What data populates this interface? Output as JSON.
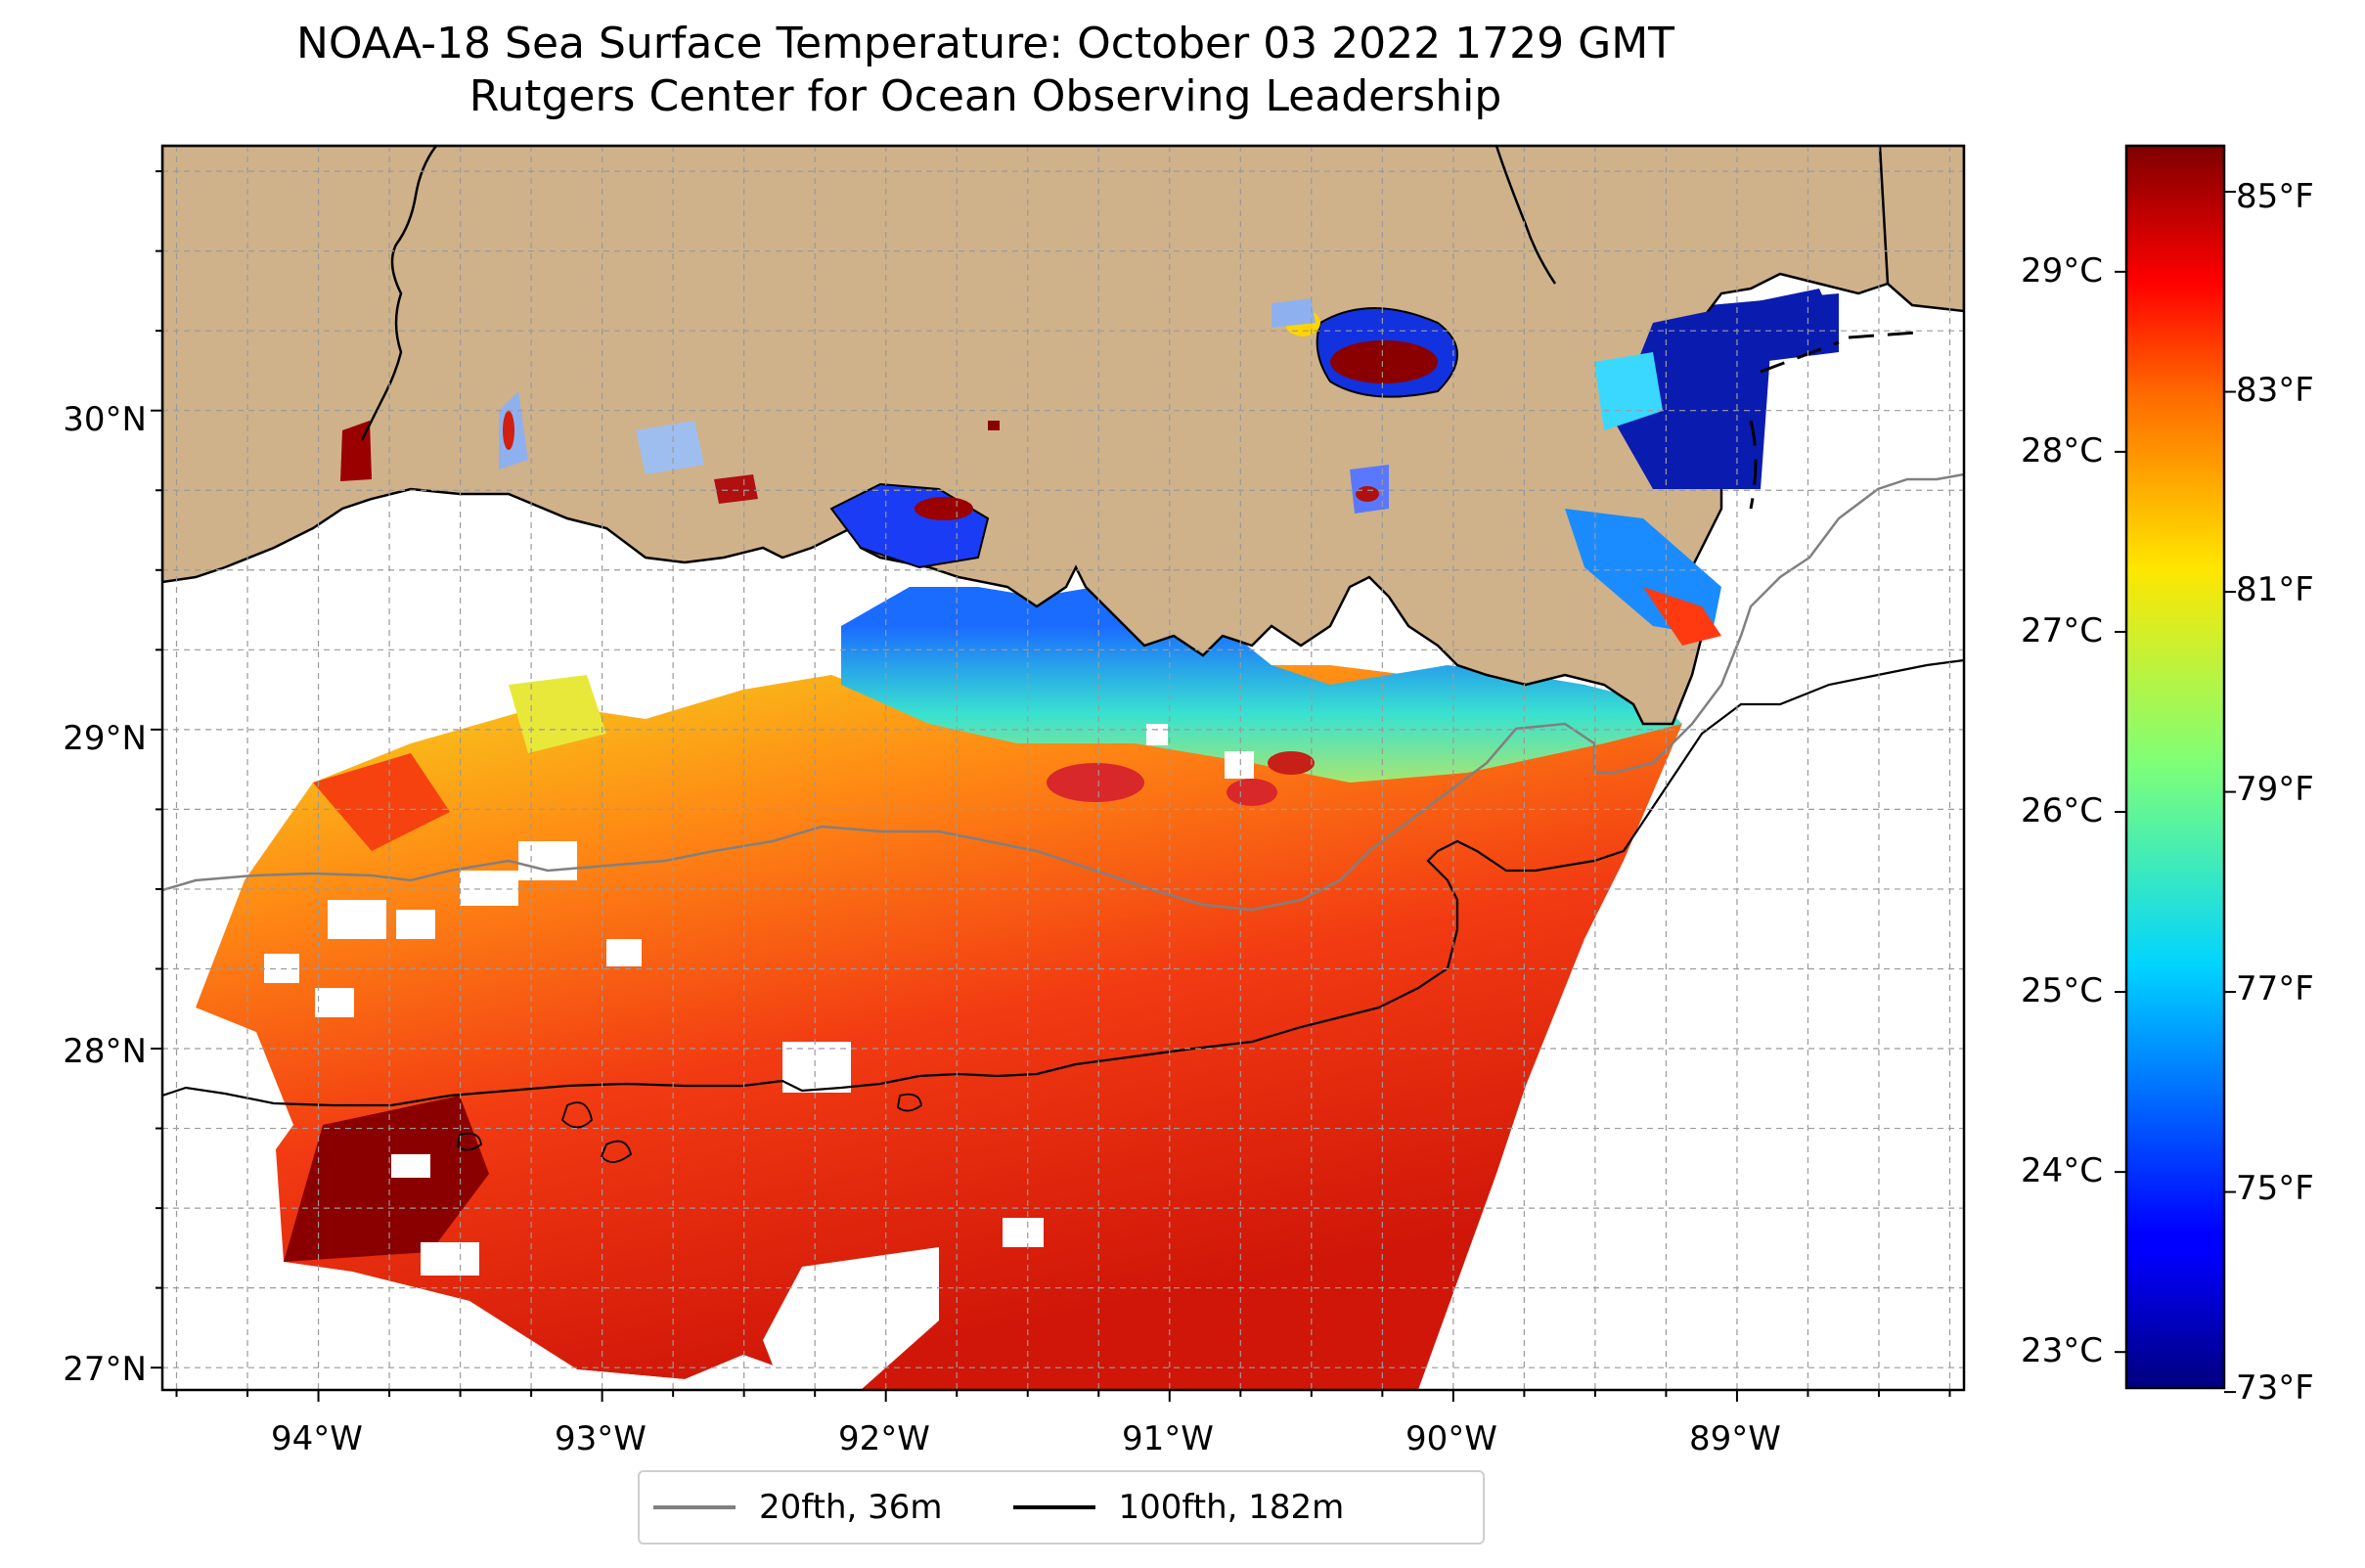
{
  "title": {
    "line1": "NOAA-18 Sea Surface Temperature: October 03 2022 1729 GMT",
    "line2": "Rutgers Center for Ocean Observing Leadership"
  },
  "map": {
    "lon_range": [
      -94.55,
      -88.2
    ],
    "lat_range": [
      26.93,
      30.83
    ],
    "lon_ticks": [
      {
        "value": -94,
        "label": "94°W"
      },
      {
        "value": -93,
        "label": "93°W"
      },
      {
        "value": -92,
        "label": "92°W"
      },
      {
        "value": -91,
        "label": "91°W"
      },
      {
        "value": -90,
        "label": "90°W"
      },
      {
        "value": -89,
        "label": "89°W"
      }
    ],
    "lat_ticks": [
      {
        "value": 27,
        "label": "27°N"
      },
      {
        "value": 28,
        "label": "28°N"
      },
      {
        "value": 29,
        "label": "29°N"
      },
      {
        "value": 30,
        "label": "30°N"
      }
    ],
    "grid_step_deg": 0.25,
    "land_color": "#cfb28a",
    "gridlines": "dashed grey"
  },
  "colorbar": {
    "colormap": "jet",
    "range_c": [
      22.8,
      29.7
    ],
    "celsius_ticks": [
      {
        "value": 23,
        "label": "23°C"
      },
      {
        "value": 24,
        "label": "24°C"
      },
      {
        "value": 25,
        "label": "25°C"
      },
      {
        "value": 26,
        "label": "26°C"
      },
      {
        "value": 27,
        "label": "27°C"
      },
      {
        "value": 28,
        "label": "28°C"
      },
      {
        "value": 29,
        "label": "29°C"
      }
    ],
    "fahrenheit_ticks": [
      {
        "value": 73,
        "label": "73°F"
      },
      {
        "value": 75,
        "label": "75°F"
      },
      {
        "value": 77,
        "label": "77°F"
      },
      {
        "value": 79,
        "label": "79°F"
      },
      {
        "value": 81,
        "label": "81°F"
      },
      {
        "value": 83,
        "label": "83°F"
      },
      {
        "value": 85,
        "label": "85°F"
      }
    ]
  },
  "legend": {
    "items": [
      {
        "label": "20fth, 36m",
        "color": "#808080"
      },
      {
        "label": "100fth, 182m",
        "color": "#000000"
      }
    ]
  }
}
